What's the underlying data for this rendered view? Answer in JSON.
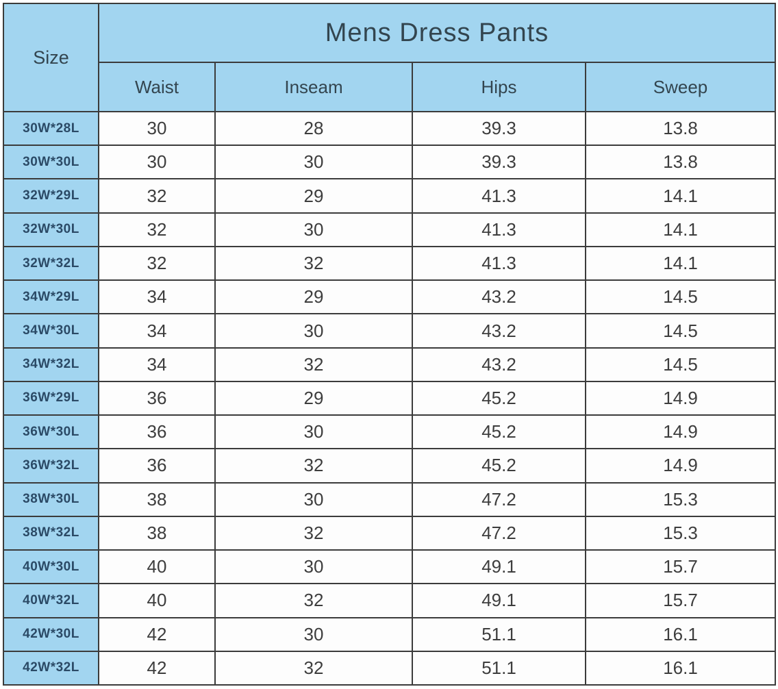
{
  "colors": {
    "header_bg": "#a2d5f0",
    "row_bg": "#fdfdfd",
    "border": "#3b3b3b",
    "title_text": "#33454f",
    "size_text": "#2b4a66",
    "data_text": "#3d3d3d"
  },
  "chart_data": {
    "type": "table",
    "title": "Mens Dress Pants",
    "size_column_header": "Size",
    "sub_columns": [
      "Waist",
      "Inseam",
      "Hips",
      "Sweep"
    ],
    "rows": [
      {
        "size": "30W*28L",
        "waist": "30",
        "inseam": "28",
        "hips": "39.3",
        "sweep": "13.8"
      },
      {
        "size": "30W*30L",
        "waist": "30",
        "inseam": "30",
        "hips": "39.3",
        "sweep": "13.8"
      },
      {
        "size": "32W*29L",
        "waist": "32",
        "inseam": "29",
        "hips": "41.3",
        "sweep": "14.1"
      },
      {
        "size": "32W*30L",
        "waist": "32",
        "inseam": "30",
        "hips": "41.3",
        "sweep": "14.1"
      },
      {
        "size": "32W*32L",
        "waist": "32",
        "inseam": "32",
        "hips": "41.3",
        "sweep": "14.1"
      },
      {
        "size": "34W*29L",
        "waist": "34",
        "inseam": "29",
        "hips": "43.2",
        "sweep": "14.5"
      },
      {
        "size": "34W*30L",
        "waist": "34",
        "inseam": "30",
        "hips": "43.2",
        "sweep": "14.5"
      },
      {
        "size": "34W*32L",
        "waist": "34",
        "inseam": "32",
        "hips": "43.2",
        "sweep": "14.5"
      },
      {
        "size": "36W*29L",
        "waist": "36",
        "inseam": "29",
        "hips": "45.2",
        "sweep": "14.9"
      },
      {
        "size": "36W*30L",
        "waist": "36",
        "inseam": "30",
        "hips": "45.2",
        "sweep": "14.9"
      },
      {
        "size": "36W*32L",
        "waist": "36",
        "inseam": "32",
        "hips": "45.2",
        "sweep": "14.9"
      },
      {
        "size": "38W*30L",
        "waist": "38",
        "inseam": "30",
        "hips": "47.2",
        "sweep": "15.3"
      },
      {
        "size": "38W*32L",
        "waist": "38",
        "inseam": "32",
        "hips": "47.2",
        "sweep": "15.3"
      },
      {
        "size": "40W*30L",
        "waist": "40",
        "inseam": "30",
        "hips": "49.1",
        "sweep": "15.7"
      },
      {
        "size": "40W*32L",
        "waist": "40",
        "inseam": "32",
        "hips": "49.1",
        "sweep": "15.7"
      },
      {
        "size": "42W*30L",
        "waist": "42",
        "inseam": "30",
        "hips": "51.1",
        "sweep": "16.1"
      },
      {
        "size": "42W*32L",
        "waist": "42",
        "inseam": "32",
        "hips": "51.1",
        "sweep": "16.1"
      }
    ]
  }
}
